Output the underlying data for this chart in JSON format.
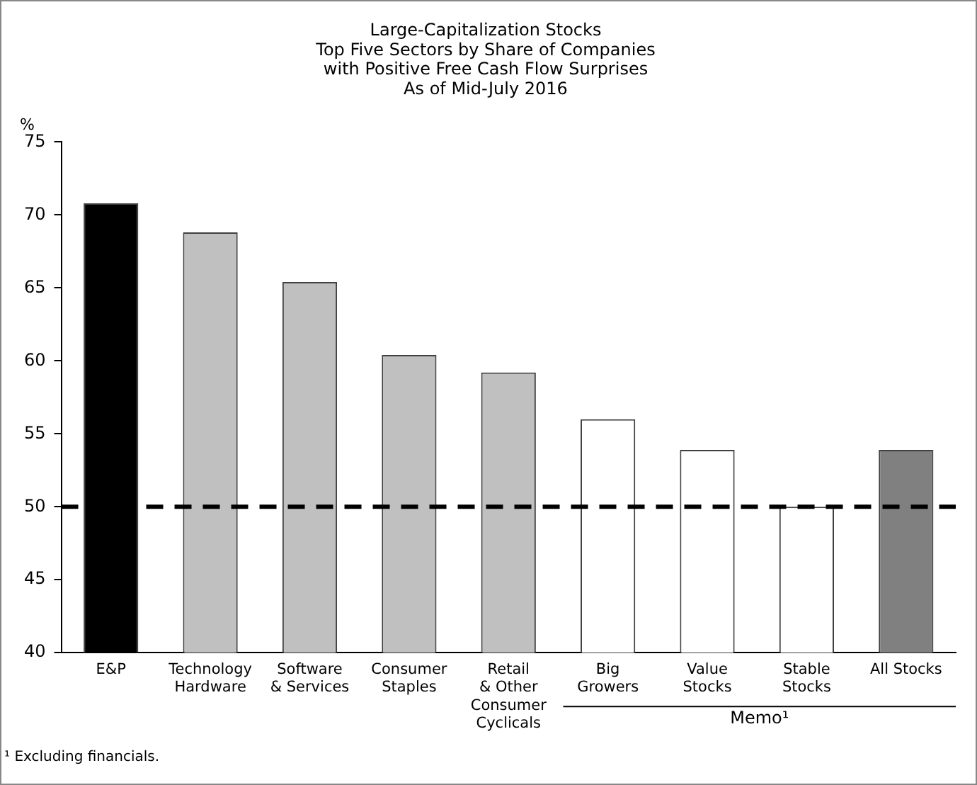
{
  "chart_data": {
    "type": "bar",
    "title": "Large-Capitalization Stocks\nTop Five Sectors by Share of Companies\nwith Positive Free Cash Flow Surprises\nAs of Mid-July 2016",
    "ylabel": "%",
    "categories": [
      "E&P",
      "Technology\nHardware",
      "Software\n& Services",
      "Consumer\nStaples",
      "Retail\n& Other\nConsumer\nCyclicals",
      "Big\nGrowers",
      "Value\nStocks",
      "Stable\nStocks",
      "All Stocks"
    ],
    "values": [
      70.8,
      68.8,
      65.4,
      60.4,
      59.2,
      56.0,
      53.9,
      50.0,
      53.9
    ],
    "colors": [
      "#000000",
      "#c0c0c0",
      "#c0c0c0",
      "#c0c0c0",
      "#c0c0c0",
      "#ffffff",
      "#ffffff",
      "#ffffff",
      "#808080"
    ],
    "ylim": [
      40,
      75
    ],
    "yticks": [
      40,
      45,
      50,
      55,
      60,
      65,
      70,
      75
    ],
    "grid": false,
    "legend": false,
    "ref_lines": [
      {
        "axis": "y",
        "value": 50,
        "line_style": "dashed",
        "color": "#000000"
      }
    ],
    "annotations": [
      "Memo¹",
      "¹ Excluding financials."
    ]
  }
}
